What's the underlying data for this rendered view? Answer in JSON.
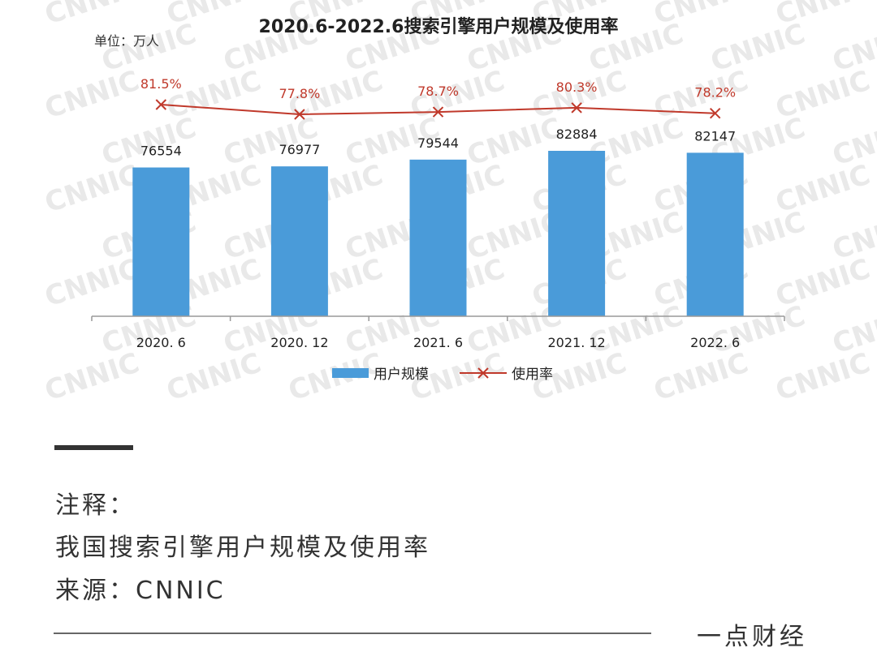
{
  "watermark": "CNNIC",
  "chart_data": {
    "type": "bar",
    "title": "2020.6-2022.6搜索引擎用户规模及使用率",
    "unit_label": "单位：万人",
    "categories": [
      "2020. 6",
      "2020. 12",
      "2021. 6",
      "2021. 12",
      "2022. 6"
    ],
    "series": [
      {
        "name": "用户规模",
        "type": "bar",
        "values": [
          76554,
          76977,
          79544,
          82884,
          82147
        ],
        "labels": [
          "76554",
          "76977",
          "79544",
          "82884",
          "82147"
        ],
        "color": "#4a9bd9"
      },
      {
        "name": "使用率",
        "type": "line",
        "values": [
          81.5,
          77.8,
          78.7,
          80.3,
          78.2
        ],
        "labels": [
          "81.5%",
          "77.8%",
          "78.7%",
          "80.3%",
          "78.2%"
        ],
        "color": "#c0392b"
      }
    ],
    "legend_position": "bottom-center",
    "grid": false
  },
  "notes": {
    "label": "注释：",
    "description": "我国搜索引擎用户规模及使用率",
    "source": "来源：CNNIC"
  },
  "footer": {
    "brand": "一点财经"
  },
  "colors": {
    "bar": "#4a9bd9",
    "line": "#c0392b",
    "label_red": "#c0392b",
    "axis": "#999999",
    "text": "#333333"
  }
}
